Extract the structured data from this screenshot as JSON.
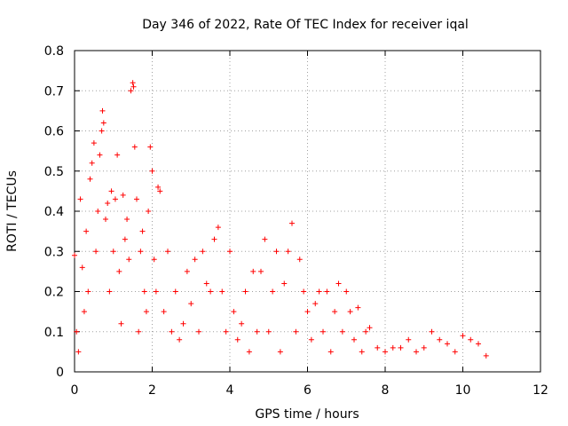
{
  "chart_data": {
    "type": "scatter",
    "title": "Day 346 of 2022, Rate Of TEC Index for receiver iqal",
    "xlabel": "GPS time / hours",
    "ylabel": "ROTI / TECUs",
    "xlim": [
      0,
      12
    ],
    "ylim": [
      0,
      0.8
    ],
    "xticks": [
      0,
      2,
      4,
      6,
      8,
      10,
      12
    ],
    "xtick_labels": [
      "0",
      "2",
      "4",
      "6",
      "8",
      "10",
      "12"
    ],
    "yticks": [
      0,
      0.1,
      0.2,
      0.3,
      0.4,
      0.5,
      0.6,
      0.7,
      0.8
    ],
    "ytick_labels": [
      "0",
      "0.1",
      "0.2",
      "0.3",
      "0.4",
      "0.5",
      "0.6",
      "0.7",
      "0.8"
    ],
    "grid": true,
    "marker": "+",
    "color": "#ff0000",
    "series": [
      {
        "name": "ROTI",
        "x": [
          0.0,
          0.05,
          0.1,
          0.15,
          0.2,
          0.25,
          0.3,
          0.35,
          0.4,
          0.45,
          0.5,
          0.55,
          0.6,
          0.65,
          0.7,
          0.72,
          0.75,
          0.8,
          0.85,
          0.9,
          0.95,
          1.0,
          1.05,
          1.1,
          1.15,
          1.2,
          1.25,
          1.3,
          1.35,
          1.4,
          1.45,
          1.5,
          1.52,
          1.55,
          1.6,
          1.65,
          1.7,
          1.75,
          1.8,
          1.85,
          1.9,
          1.95,
          2.0,
          2.05,
          2.1,
          2.15,
          2.2,
          2.3,
          2.4,
          2.5,
          2.6,
          2.7,
          2.8,
          2.9,
          3.0,
          3.1,
          3.2,
          3.3,
          3.4,
          3.5,
          3.6,
          3.7,
          3.8,
          3.9,
          4.0,
          4.1,
          4.2,
          4.3,
          4.4,
          4.5,
          4.6,
          4.7,
          4.8,
          4.9,
          5.0,
          5.1,
          5.2,
          5.3,
          5.4,
          5.5,
          5.6,
          5.7,
          5.8,
          5.9,
          6.0,
          6.1,
          6.2,
          6.3,
          6.4,
          6.5,
          6.6,
          6.7,
          6.8,
          6.9,
          7.0,
          7.1,
          7.2,
          7.3,
          7.4,
          7.5,
          7.6,
          7.8,
          8.0,
          8.2,
          8.4,
          8.6,
          8.8,
          9.0,
          9.2,
          9.4,
          9.6,
          9.8,
          10.0,
          10.2,
          10.4,
          10.6
        ],
        "y": [
          0.29,
          0.1,
          0.05,
          0.43,
          0.26,
          0.15,
          0.35,
          0.2,
          0.48,
          0.52,
          0.57,
          0.3,
          0.4,
          0.54,
          0.6,
          0.65,
          0.62,
          0.38,
          0.42,
          0.2,
          0.45,
          0.3,
          0.43,
          0.54,
          0.25,
          0.12,
          0.44,
          0.33,
          0.38,
          0.28,
          0.7,
          0.72,
          0.71,
          0.56,
          0.43,
          0.1,
          0.3,
          0.35,
          0.2,
          0.15,
          0.4,
          0.56,
          0.5,
          0.28,
          0.2,
          0.46,
          0.45,
          0.15,
          0.3,
          0.1,
          0.2,
          0.08,
          0.12,
          0.25,
          0.17,
          0.28,
          0.1,
          0.3,
          0.22,
          0.2,
          0.33,
          0.36,
          0.2,
          0.1,
          0.3,
          0.15,
          0.08,
          0.12,
          0.2,
          0.05,
          0.25,
          0.1,
          0.25,
          0.33,
          0.1,
          0.2,
          0.3,
          0.05,
          0.22,
          0.3,
          0.37,
          0.1,
          0.28,
          0.2,
          0.15,
          0.08,
          0.17,
          0.2,
          0.1,
          0.2,
          0.05,
          0.15,
          0.22,
          0.1,
          0.2,
          0.15,
          0.08,
          0.16,
          0.05,
          0.1,
          0.11,
          0.06,
          0.05,
          0.06,
          0.06,
          0.08,
          0.05,
          0.06,
          0.1,
          0.08,
          0.07,
          0.05,
          0.09,
          0.08,
          0.07,
          0.04
        ]
      }
    ]
  }
}
